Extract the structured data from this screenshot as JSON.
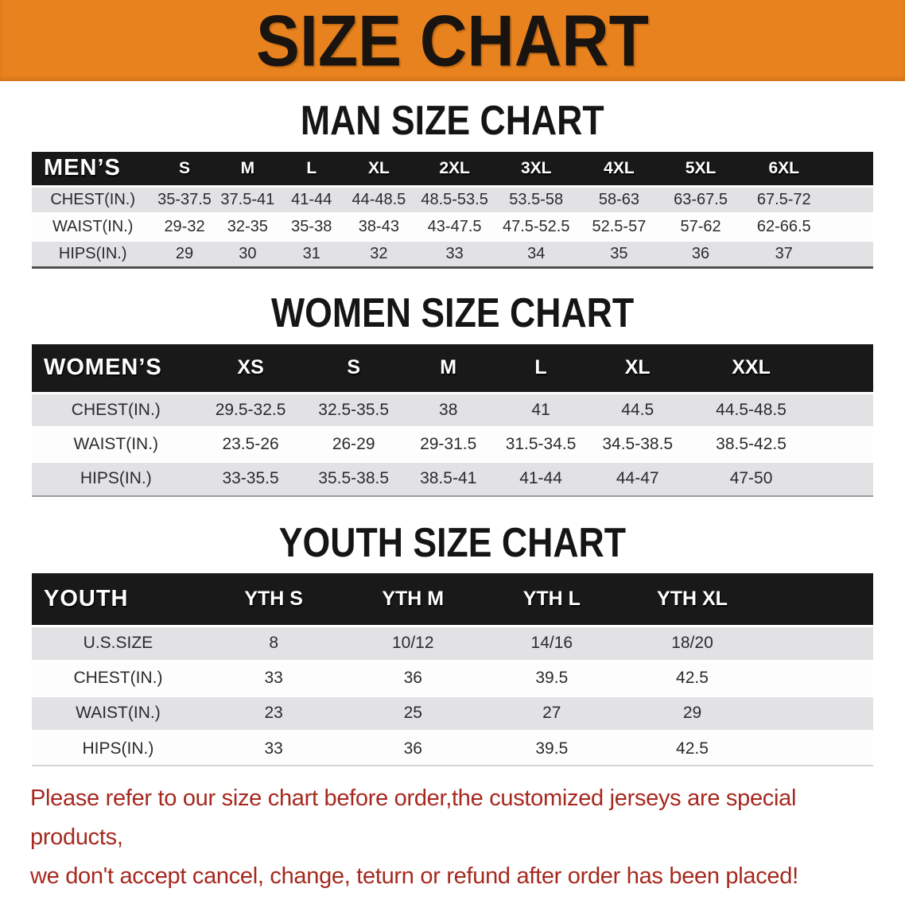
{
  "banner": {
    "title": "SIZE CHART"
  },
  "sections": [
    {
      "heading": "MAN SIZE CHART",
      "table": {
        "header": [
          "MEN’S",
          "S",
          "M",
          "L",
          "XL",
          "2XL",
          "3XL",
          "4XL",
          "5XL",
          "6XL"
        ],
        "rows": [
          {
            "label": "CHEST(IN.)",
            "values": [
              "35-37.5",
              "37.5-41",
              "41-44",
              "44-48.5",
              "48.5-53.5",
              "53.5-58",
              "58-63",
              "63-67.5",
              "67.5-72"
            ]
          },
          {
            "label": "WAIST(IN.)",
            "values": [
              "29-32",
              "32-35",
              "35-38",
              "38-43",
              "43-47.5",
              "47.5-52.5",
              "52.5-57",
              "57-62",
              "62-66.5"
            ]
          },
          {
            "label": "HIPS(IN.)",
            "values": [
              "29",
              "30",
              "31",
              "32",
              "33",
              "34",
              "35",
              "36",
              "37"
            ]
          }
        ]
      }
    },
    {
      "heading": "WOMEN SIZE CHART",
      "table": {
        "header": [
          "WOMEN’S",
          "XS",
          "S",
          "M",
          "L",
          "XL",
          "XXL"
        ],
        "rows": [
          {
            "label": "CHEST(IN.)",
            "values": [
              "29.5-32.5",
              "32.5-35.5",
              "38",
              "41",
              "44.5",
              "44.5-48.5"
            ]
          },
          {
            "label": "WAIST(IN.)",
            "values": [
              "23.5-26",
              "26-29",
              "29-31.5",
              "31.5-34.5",
              "34.5-38.5",
              "38.5-42.5"
            ]
          },
          {
            "label": "HIPS(IN.)",
            "values": [
              "33-35.5",
              "35.5-38.5",
              "38.5-41",
              "41-44",
              "44-47",
              "47-50"
            ]
          }
        ]
      }
    },
    {
      "heading": "YOUTH SIZE CHART",
      "table": {
        "header": [
          "YOUTH",
          "YTH S",
          "YTH M",
          "YTH L",
          "YTH XL"
        ],
        "rows": [
          {
            "label": "U.S.SIZE",
            "values": [
              "8",
              "10/12",
              "14/16",
              "18/20"
            ]
          },
          {
            "label": "CHEST(IN.)",
            "values": [
              "33",
              "36",
              "39.5",
              "42.5"
            ]
          },
          {
            "label": "WAIST(IN.)",
            "values": [
              "23",
              "25",
              "27",
              "29"
            ]
          },
          {
            "label": "HIPS(IN.)",
            "values": [
              "33",
              "36",
              "39.5",
              "42.5"
            ]
          }
        ]
      }
    }
  ],
  "disclaimer": {
    "line1": "Please refer to our size chart before order,the customized jerseys are special products,",
    "line2": "we don't accept cancel, change, teturn or refund after order has been placed!"
  },
  "colors": {
    "banner_bg": "#E8821E",
    "header_bar": "#191919",
    "row_stripe": "#E2E2E4",
    "disclaimer_red": "#A6281E"
  }
}
